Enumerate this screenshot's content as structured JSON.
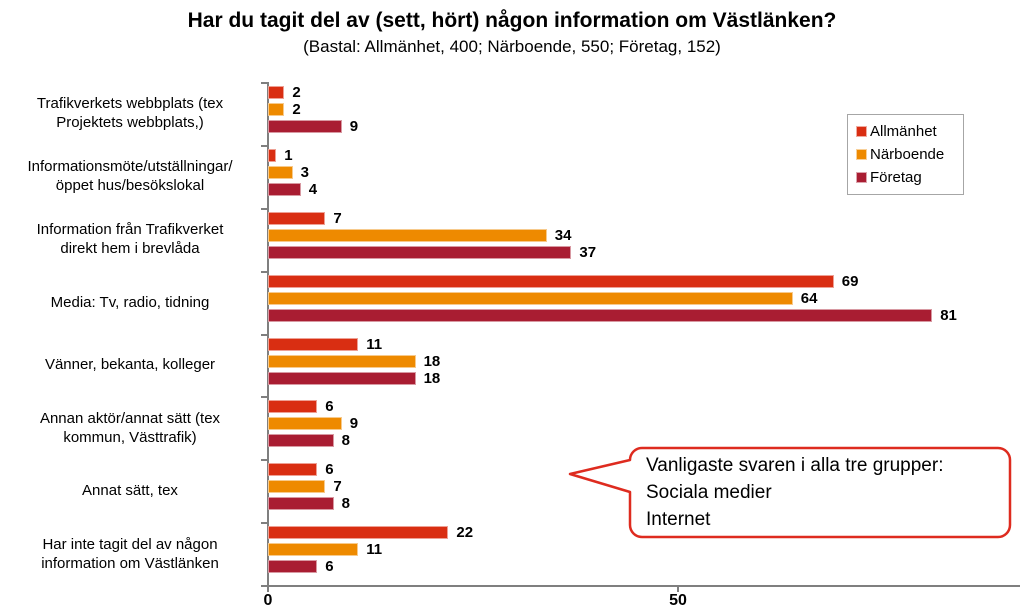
{
  "chart_data": {
    "type": "bar",
    "orientation": "horizontal",
    "title": "Har du tagit del av (sett, hört) någon information om Västlänken?",
    "subtitle": "(Bastal: Allmänhet, 400; Närboende, 550; Företag, 152)",
    "categories": [
      {
        "lines": [
          "Trafikverkets webbplats (tex",
          "Projektets webbplats,)"
        ]
      },
      {
        "lines": [
          "Informationsmöte/utställningar/",
          "öppet hus/besökslokal"
        ]
      },
      {
        "lines": [
          "Information från Trafikverket",
          "direkt hem i brevlåda"
        ]
      },
      {
        "lines": [
          "Media: Tv, radio, tidning"
        ]
      },
      {
        "lines": [
          "Vänner, bekanta, kolleger"
        ]
      },
      {
        "lines": [
          "Annan aktör/annat sätt (tex",
          "kommun, Västtrafik)"
        ]
      },
      {
        "lines": [
          "Annat sätt, tex"
        ]
      },
      {
        "lines": [
          "Har inte tagit del av någon",
          "information om Västlänken"
        ]
      }
    ],
    "series": [
      {
        "name": "Allmänhet",
        "color": "#d92e12",
        "values": [
          2,
          1,
          7,
          69,
          11,
          6,
          6,
          22
        ]
      },
      {
        "name": "Närboende",
        "color": "#ee8a00",
        "values": [
          2,
          3,
          34,
          64,
          18,
          9,
          7,
          11
        ]
      },
      {
        "name": "Företag",
        "color": "#a91d32",
        "values": [
          9,
          4,
          37,
          81,
          18,
          8,
          8,
          6
        ]
      }
    ],
    "xlim": [
      0,
      92
    ],
    "x_tick_values": [
      0,
      50
    ],
    "x_tick_labels": [
      "0",
      "50"
    ],
    "grid": false,
    "legend_position": "top-right",
    "value_labels": true
  },
  "legend": {
    "border_color": "#a6a6a6"
  },
  "callout": {
    "lines": [
      "Vanligaste svaren i alla tre grupper:",
      "Sociala medier",
      "Internet"
    ],
    "border_color": "#de2b1f"
  }
}
